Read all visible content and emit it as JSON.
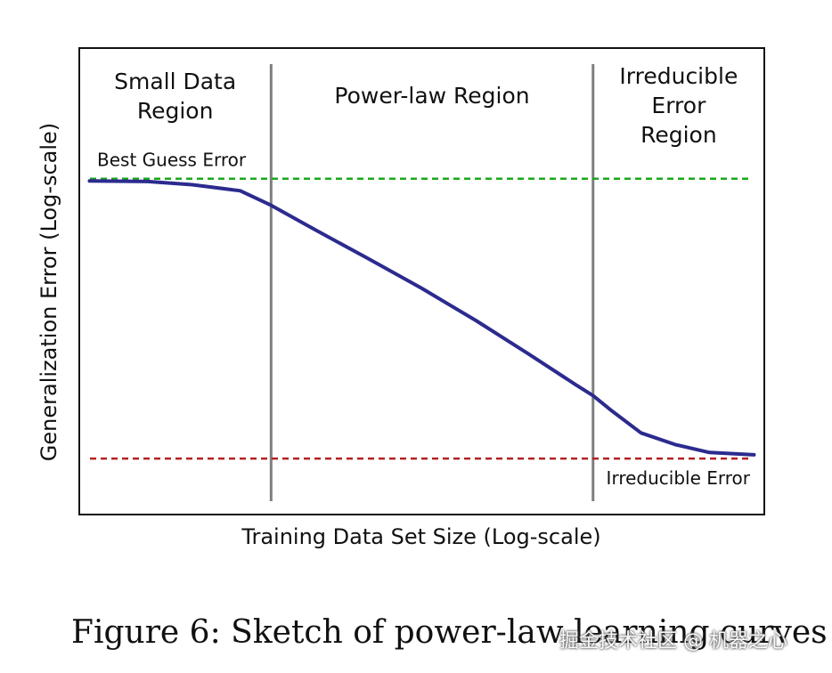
{
  "chart_data": {
    "type": "line",
    "xlabel": "Training Data Set Size (Log-scale)",
    "ylabel": "Generalization Error (Log-scale)",
    "x_scale": "log",
    "y_scale": "log",
    "xlim": [
      0,
      10
    ],
    "ylim": [
      0,
      10
    ],
    "grid": false,
    "regions": [
      {
        "label_lines": [
          "Small Data",
          "Region"
        ],
        "x_start": 0.0,
        "x_end": 2.8
      },
      {
        "label_lines": [
          "Power-law Region"
        ],
        "x_start": 2.8,
        "x_end": 7.5
      },
      {
        "label_lines": [
          "Irreducible",
          "Error",
          "Region"
        ],
        "x_start": 7.5,
        "x_end": 10.0
      }
    ],
    "region_boundaries": [
      2.8,
      7.5
    ],
    "reference_lines": [
      {
        "label": "Best Guess Error",
        "y": 7.2,
        "color": "#1aa81a"
      },
      {
        "label": "Irreducible Error",
        "y": 1.2,
        "color": "#b22222"
      }
    ],
    "series": [
      {
        "color": "#2b2b8f",
        "x": [
          0.15,
          1.0,
          1.65,
          2.35,
          2.8,
          3.45,
          4.2,
          5.0,
          5.8,
          6.55,
          7.25,
          7.5,
          7.75,
          8.2,
          8.7,
          9.2,
          9.85
        ],
        "y": [
          7.15,
          7.14,
          7.07,
          6.94,
          6.63,
          6.1,
          5.5,
          4.85,
          4.15,
          3.45,
          2.78,
          2.55,
          2.25,
          1.75,
          1.5,
          1.33,
          1.28
        ]
      }
    ]
  },
  "caption": "Figure 6: Sketch of power-law learning curves",
  "watermark": "掘金技术社区 @ 机器之心"
}
